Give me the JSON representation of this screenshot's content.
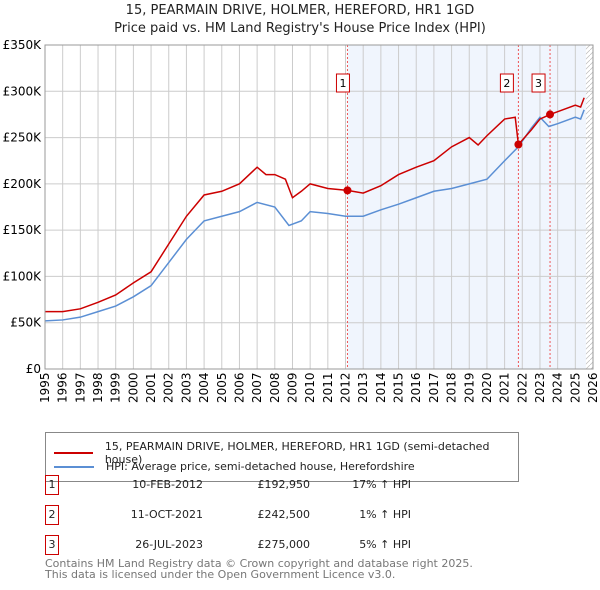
{
  "chart_data": {
    "type": "line",
    "title": "15, PEARMAIN DRIVE, HOLMER, HEREFORD, HR1 1GD",
    "subtitle": "Price paid vs. HM Land Registry's House Price Index (HPI)",
    "xlim": [
      1995,
      2026
    ],
    "ylim": [
      0,
      350000
    ],
    "yticks": [
      {
        "v": 0,
        "label": "£0"
      },
      {
        "v": 50000,
        "label": "£50K"
      },
      {
        "v": 100000,
        "label": "£100K"
      },
      {
        "v": 150000,
        "label": "£150K"
      },
      {
        "v": 200000,
        "label": "£200K"
      },
      {
        "v": 250000,
        "label": "£250K"
      },
      {
        "v": 300000,
        "label": "£300K"
      },
      {
        "v": 350000,
        "label": "£350K"
      }
    ],
    "xticks": [
      "1995",
      "1996",
      "1997",
      "1998",
      "1999",
      "2000",
      "2001",
      "2002",
      "2003",
      "2004",
      "2005",
      "2006",
      "2007",
      "2008",
      "2009",
      "2010",
      "2011",
      "2012",
      "2013",
      "2014",
      "2015",
      "2016",
      "2017",
      "2018",
      "2019",
      "2020",
      "2021",
      "2022",
      "2023",
      "2024",
      "2025",
      "2026"
    ],
    "shade_from": 2012.11,
    "hatch_from": 2025.6,
    "series": [
      {
        "name": "15, PEARMAIN DRIVE, HOLMER, HEREFORD, HR1 1GD (semi-detached house)",
        "color": "#cc0000",
        "x": [
          1995,
          1996,
          1997,
          1998,
          1999,
          2000,
          2001,
          2002,
          2003,
          2004,
          2005,
          2006,
          2007,
          2007.5,
          2008,
          2008.6,
          2009,
          2009.5,
          2010,
          2011,
          2012.11,
          2013,
          2014,
          2015,
          2016,
          2017,
          2018,
          2019,
          2019.5,
          2020,
          2021,
          2021.6,
          2021.78,
          2022.5,
          2023,
          2023.57,
          2024,
          2025,
          2025.3,
          2025.5
        ],
        "y": [
          62000,
          62000,
          65000,
          72000,
          80000,
          93000,
          105000,
          135000,
          165000,
          188000,
          192000,
          200000,
          218000,
          210000,
          210000,
          205000,
          185000,
          192000,
          200000,
          195000,
          192950,
          190000,
          198000,
          210000,
          218000,
          225000,
          240000,
          250000,
          242000,
          252000,
          270000,
          272000,
          242500,
          258000,
          270000,
          275000,
          278000,
          285000,
          283000,
          293000
        ]
      },
      {
        "name": "HPI: Average price, semi-detached house, Herefordshire",
        "color": "#5b8fd4",
        "x": [
          1995,
          1996,
          1997,
          1998,
          1999,
          2000,
          2001,
          2002,
          2003,
          2004,
          2005,
          2006,
          2007,
          2008,
          2008.8,
          2009.5,
          2010,
          2011,
          2012,
          2013,
          2014,
          2015,
          2016,
          2017,
          2018,
          2019,
          2020,
          2021,
          2021.78,
          2022.5,
          2023,
          2023.5,
          2024,
          2025,
          2025.3,
          2025.5
        ],
        "y": [
          52000,
          53000,
          56000,
          62000,
          68000,
          78000,
          90000,
          115000,
          140000,
          160000,
          165000,
          170000,
          180000,
          175000,
          155000,
          160000,
          170000,
          168000,
          165000,
          165000,
          172000,
          178000,
          185000,
          192000,
          195000,
          200000,
          205000,
          225000,
          240000,
          260000,
          272000,
          262000,
          265000,
          272000,
          270000,
          280000
        ]
      }
    ],
    "sales": [
      {
        "n": "1",
        "date": "10-FEB-2012",
        "x": 2012.11,
        "price": "£192,950",
        "value": 192950,
        "hpi": "17% ↑ HPI"
      },
      {
        "n": "2",
        "date": "11-OCT-2021",
        "x": 2021.78,
        "price": "£242,500",
        "value": 242500,
        "hpi": "1% ↑ HPI"
      },
      {
        "n": "3",
        "date": "26-JUL-2023",
        "x": 2023.57,
        "price": "£275,000",
        "value": 275000,
        "hpi": "5% ↑ HPI"
      }
    ]
  },
  "footer": {
    "line1": "Contains HM Land Registry data © Crown copyright and database right 2025.",
    "line2": "This data is licensed under the Open Government Licence v3.0."
  }
}
